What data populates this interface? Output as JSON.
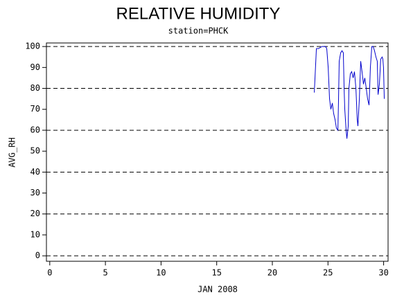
{
  "chart_data": {
    "type": "line",
    "title": "RELATIVE HUMIDITY",
    "subtitle": "station=PHCK",
    "x_label": "JAN 2008",
    "y_label": "AVG_RH",
    "xlim": [
      -0.3,
      30.4
    ],
    "xticks": [
      0,
      5,
      10,
      15,
      20,
      25,
      30
    ],
    "ylim": [
      -2.6,
      101.7
    ],
    "yticks": [
      0,
      10,
      20,
      30,
      40,
      50,
      60,
      70,
      80,
      90,
      100
    ],
    "grid_values": [
      0,
      20,
      40,
      60,
      80,
      100
    ],
    "series": [
      {
        "color": "#0000cc",
        "x": [
          23.77,
          23.96,
          24.14,
          24.46,
          24.77,
          24.89,
          25.02,
          25.14,
          25.26,
          25.39,
          25.51,
          25.64,
          25.76,
          25.89,
          25.95,
          26.01,
          26.14,
          26.26,
          26.38,
          26.45,
          26.51,
          26.63,
          26.7,
          26.82,
          26.88,
          27.01,
          27.13,
          27.26,
          27.38,
          27.51,
          27.63,
          27.69,
          27.82,
          27.94,
          28.06,
          28.19,
          28.31,
          28.44,
          28.56,
          28.69,
          28.81,
          28.94,
          29.06,
          29.18,
          29.31,
          29.43,
          29.5,
          29.62,
          29.74,
          29.87,
          29.93,
          29.99,
          30.06
        ],
        "values": [
          78,
          99,
          99,
          100,
          100,
          99,
          90,
          75,
          70,
          73,
          68,
          65,
          61,
          60,
          75,
          93,
          97,
          98,
          97,
          80,
          70,
          60,
          56,
          62,
          80,
          87,
          88,
          85,
          88,
          80,
          65,
          62,
          75,
          93,
          88,
          82,
          85,
          80,
          75,
          72,
          90,
          100,
          100,
          98,
          95,
          93,
          77,
          82,
          94,
          95,
          94,
          90,
          75
        ]
      }
    ]
  }
}
